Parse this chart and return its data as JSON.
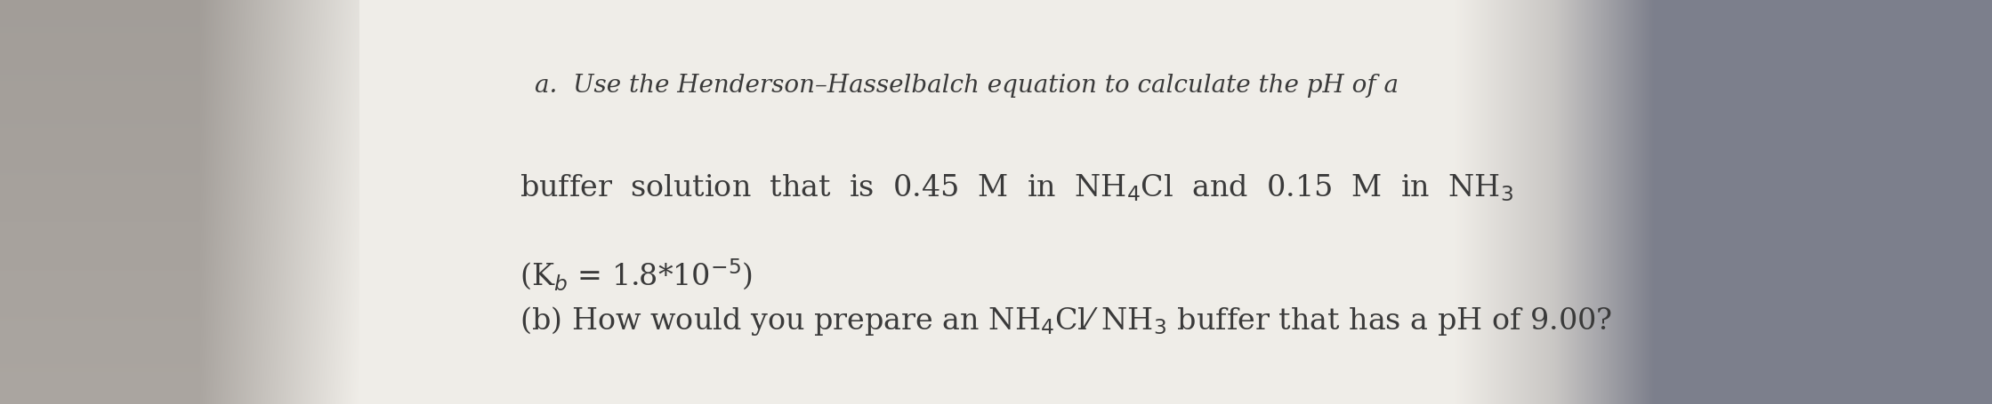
{
  "bg_left_color": "#b0b0b0",
  "bg_paper_color": "#f0eeea",
  "bg_right_color": "#7a8090",
  "text_color": "#3a3a3a",
  "line1": "a.  Use the Henderson–Hasselbalch equation to calculate the pH of a",
  "line2": "buffer  solution  that  is  0.45  M  in  NH$_4$Cl  and  0.15  M  in  NH$_3$",
  "line3": "(K$_b$ = 1.8*10$^{-5}$)",
  "line4": "(b) How would you prepare an NH$_4$Cl⁄ NH$_3$ buffer that has a pH of 9.00?",
  "font_size_line1": 20,
  "font_size_main": 24,
  "font_family": "serif",
  "figwidth": 22.39,
  "figheight": 4.55,
  "dpi": 100
}
